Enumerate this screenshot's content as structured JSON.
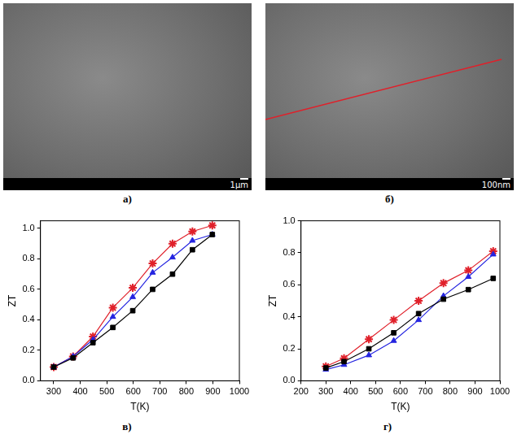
{
  "panel_labels": [
    "а)",
    "б)",
    "в)",
    "г)"
  ],
  "images": [
    {
      "scale_bar": "1μm"
    },
    {
      "scale_bar": "100nm"
    }
  ],
  "chart_data": [
    {
      "type": "line",
      "x_label": "T(K)",
      "y_label": "ZT",
      "grid": false,
      "xlim": [
        250,
        1000
      ],
      "xticks": [
        300,
        400,
        500,
        600,
        700,
        800,
        900,
        1000
      ],
      "ylim": [
        0,
        1.05
      ],
      "yticks": [
        {
          "value": 0,
          "label": "0.0"
        },
        0.2,
        0.4,
        0.6,
        0.8,
        {
          "value": 1,
          "label": "1.0"
        }
      ],
      "x": [
        300,
        373,
        448,
        523,
        598,
        673,
        748,
        823,
        898
      ],
      "series": [
        {
          "color": "#000000",
          "marker": "square",
          "values": [
            0.09,
            0.15,
            0.25,
            0.35,
            0.46,
            0.6,
            0.7,
            0.86,
            0.96
          ]
        },
        {
          "color": "#2424e0",
          "marker": "triangle",
          "values": [
            0.09,
            0.16,
            0.27,
            0.42,
            0.55,
            0.71,
            0.81,
            0.92,
            0.96
          ]
        },
        {
          "color": "#e0202a",
          "marker": "star",
          "values": [
            0.09,
            0.16,
            0.29,
            0.48,
            0.61,
            0.77,
            0.9,
            0.98,
            1.02
          ]
        }
      ]
    },
    {
      "type": "line",
      "x_label": "T(K)",
      "y_label": "ZT",
      "grid": false,
      "xlim": [
        200,
        1000
      ],
      "xticks": [
        200,
        300,
        400,
        500,
        600,
        700,
        800,
        900,
        1000
      ],
      "ylim": [
        0,
        1
      ],
      "yticks": [
        {
          "value": 0,
          "label": "0.0"
        },
        0.2,
        0.4,
        0.6,
        0.8,
        {
          "value": 1,
          "label": "1.0"
        }
      ],
      "x": [
        300,
        373,
        473,
        573,
        673,
        773,
        873,
        973
      ],
      "series": [
        {
          "color": "#000000",
          "marker": "square",
          "values": [
            0.08,
            0.12,
            0.2,
            0.3,
            0.42,
            0.51,
            0.57,
            0.64
          ]
        },
        {
          "color": "#2424e0",
          "marker": "triangle",
          "values": [
            0.07,
            0.1,
            0.16,
            0.25,
            0.38,
            0.53,
            0.65,
            0.79
          ]
        },
        {
          "color": "#e0202a",
          "marker": "star",
          "values": [
            0.09,
            0.14,
            0.26,
            0.38,
            0.5,
            0.61,
            0.69,
            0.81
          ]
        }
      ]
    }
  ]
}
